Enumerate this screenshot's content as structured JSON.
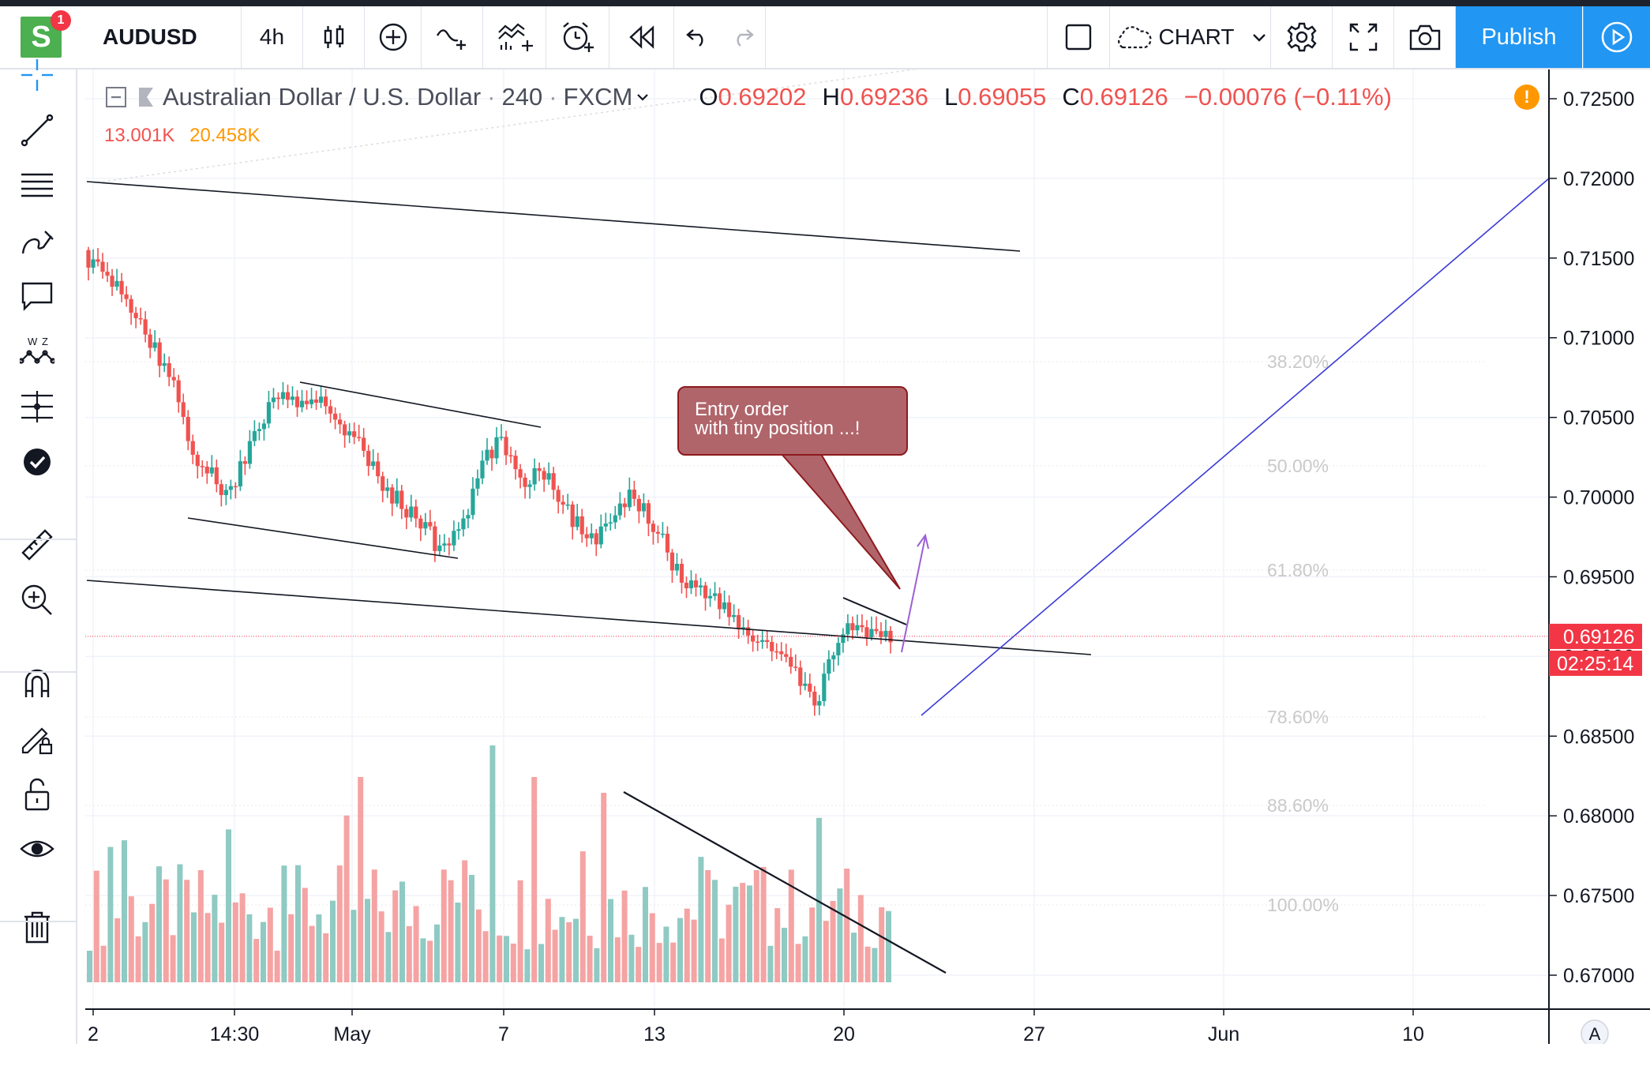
{
  "toolbar": {
    "logo_letter": "S",
    "notification_count": "1",
    "symbol": "AUDUSD",
    "interval": "4h",
    "layout_name": "CHART",
    "publish_label": "Publish"
  },
  "legend": {
    "title": "Australian Dollar / U.S. Dollar",
    "interval": "240",
    "exchange": "FXCM",
    "open_label": "O",
    "open": "0.69202",
    "high_label": "H",
    "high": "0.69236",
    "low_label": "L",
    "low": "0.69055",
    "close_label": "C",
    "close": "0.69126",
    "change": "−0.00076 (−0.11%)",
    "volume": "13.001K",
    "volume_ma": "20.458K",
    "alert_icon": "!"
  },
  "annotation": {
    "text": "Entry order\nwith tiny position ...!"
  },
  "price_axis": {
    "labels": [
      "0.72500",
      "0.72000",
      "0.71500",
      "0.71000",
      "0.70500",
      "0.70000",
      "0.69500",
      "0.69000",
      "0.68500",
      "0.68000",
      "0.67500",
      "0.67000"
    ],
    "current_price": "0.69126",
    "countdown": "02:25:14",
    "auto_label": "A"
  },
  "time_axis": {
    "labels": [
      "2",
      "14:30",
      "May",
      "7",
      "13",
      "20",
      "27",
      "Jun",
      "10"
    ]
  },
  "fibonacci": {
    "levels": [
      "38.20%",
      "50.00%",
      "61.80%",
      "78.60%",
      "88.60%",
      "100.00%"
    ]
  },
  "colors": {
    "up": "#26a69a",
    "down": "#ef5350",
    "up_volume": "#8fcac3",
    "down_volume": "#f5a3a3",
    "accent": "#2196f3",
    "price_tag": "#f23645",
    "projection_line": "#3b3bd6",
    "arrow": "#9c5fd6",
    "callout_fill": "#b0656b"
  },
  "chart_data": {
    "type": "candlestick",
    "symbol": "AUDUSD",
    "timeframe": "240",
    "ylim": [
      0.6685,
      0.7255
    ],
    "last_price": 0.69126,
    "close_path": [
      0.715,
      0.714,
      0.713,
      0.712,
      0.71,
      0.7085,
      0.707,
      0.703,
      0.702,
      0.7005,
      0.701,
      0.703,
      0.705,
      0.7065,
      0.706,
      0.7055,
      0.706,
      0.705,
      0.704,
      0.7025,
      0.701,
      0.7,
      0.699,
      0.6985,
      0.6965,
      0.6975,
      0.699,
      0.702,
      0.7035,
      0.7025,
      0.701,
      0.702,
      0.7005,
      0.699,
      0.6975,
      0.6975,
      0.6985,
      0.7,
      0.6995,
      0.698,
      0.696,
      0.6945,
      0.6945,
      0.6935,
      0.6925,
      0.6915,
      0.691,
      0.6905,
      0.6895,
      0.688,
      0.687,
      0.6905,
      0.692,
      0.6915,
      0.691,
      0.6913
    ]
  }
}
